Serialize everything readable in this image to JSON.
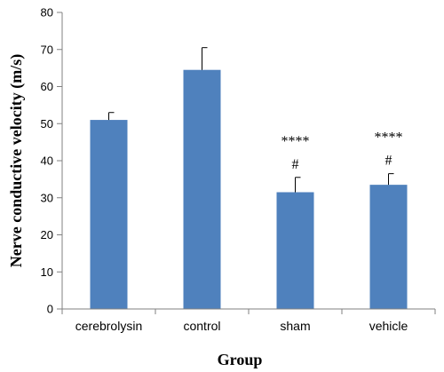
{
  "chart_data": {
    "type": "bar",
    "categories": [
      "cerebrolysin",
      "control",
      "sham",
      "vehicle"
    ],
    "values": [
      51,
      64.5,
      31.5,
      33.5
    ],
    "errors": [
      2,
      6,
      4,
      3
    ],
    "annotations": [
      {
        "category": "sham",
        "lines": [
          "****",
          "#"
        ]
      },
      {
        "category": "vehicle",
        "lines": [
          "****",
          "#"
        ]
      }
    ],
    "title": "",
    "xlabel": "Group",
    "ylabel": "Nerve conductive velocity (m/s)",
    "ylim": [
      0,
      80
    ],
    "yticks": [
      0,
      10,
      20,
      30,
      40,
      50,
      60,
      70,
      80
    ],
    "grid": false,
    "bar_color": "#4F81BD"
  }
}
